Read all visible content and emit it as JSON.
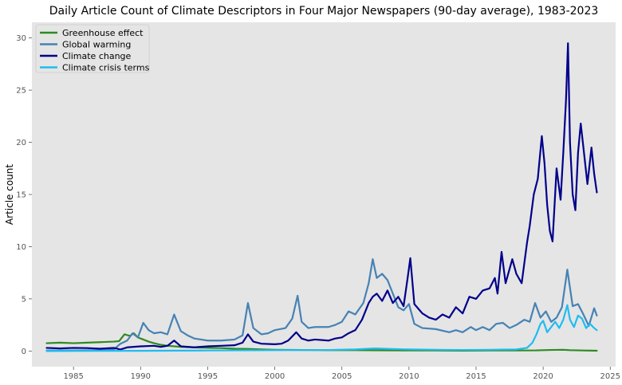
{
  "chart_data": {
    "type": "line",
    "title": "Daily Article Count of Climate Descriptors in Four Major Newspapers (90-day average), 1983-2023",
    "xlabel": "",
    "ylabel": "Article count",
    "xlim": [
      1981.9,
      2025.4
    ],
    "ylim": [
      -1.5,
      31.5
    ],
    "x_ticks": [
      1985,
      1990,
      1995,
      2000,
      2005,
      2010,
      2015,
      2020,
      2025
    ],
    "y_ticks": [
      0,
      5,
      10,
      15,
      20,
      25,
      30
    ],
    "grid": false,
    "background": "#e5e5e5",
    "legend_position": "top-left",
    "series": [
      {
        "name": "Greenhouse effect",
        "color": "#2e8b22",
        "points": [
          [
            1983.0,
            0.75
          ],
          [
            1984.0,
            0.8
          ],
          [
            1985.0,
            0.75
          ],
          [
            1986.0,
            0.8
          ],
          [
            1987.0,
            0.85
          ],
          [
            1988.0,
            0.9
          ],
          [
            1988.4,
            0.95
          ],
          [
            1988.8,
            1.6
          ],
          [
            1989.2,
            1.45
          ],
          [
            1989.5,
            1.7
          ],
          [
            1989.8,
            1.3
          ],
          [
            1990.2,
            1.1
          ],
          [
            1990.6,
            0.9
          ],
          [
            1991.0,
            0.75
          ],
          [
            1991.5,
            0.6
          ],
          [
            1992.0,
            0.5
          ],
          [
            1993.0,
            0.4
          ],
          [
            1994.0,
            0.35
          ],
          [
            1995.0,
            0.3
          ],
          [
            1996.0,
            0.28
          ],
          [
            1997.0,
            0.22
          ],
          [
            1998.0,
            0.2
          ],
          [
            1999.0,
            0.15
          ],
          [
            2000.0,
            0.12
          ],
          [
            2002.0,
            0.1
          ],
          [
            2004.0,
            0.08
          ],
          [
            2006.0,
            0.08
          ],
          [
            2008.0,
            0.06
          ],
          [
            2010.0,
            0.05
          ],
          [
            2012.0,
            0.05
          ],
          [
            2014.0,
            0.04
          ],
          [
            2016.0,
            0.05
          ],
          [
            2018.0,
            0.05
          ],
          [
            2019.5,
            0.06
          ],
          [
            2020.5,
            0.1
          ],
          [
            2021.5,
            0.12
          ],
          [
            2022.0,
            0.08
          ],
          [
            2023.0,
            0.05
          ],
          [
            2024.0,
            0.03
          ]
        ]
      },
      {
        "name": "Global warming",
        "color": "#4682b4",
        "points": [
          [
            1983.0,
            0.05
          ],
          [
            1985.0,
            0.05
          ],
          [
            1987.0,
            0.08
          ],
          [
            1988.0,
            0.15
          ],
          [
            1988.5,
            0.7
          ],
          [
            1989.0,
            1.0
          ],
          [
            1989.4,
            1.7
          ],
          [
            1989.8,
            1.3
          ],
          [
            1990.2,
            2.7
          ],
          [
            1990.6,
            2.0
          ],
          [
            1991.0,
            1.7
          ],
          [
            1991.5,
            1.8
          ],
          [
            1992.0,
            1.6
          ],
          [
            1992.5,
            3.5
          ],
          [
            1993.0,
            1.9
          ],
          [
            1993.5,
            1.5
          ],
          [
            1994.0,
            1.2
          ],
          [
            1995.0,
            1.0
          ],
          [
            1996.0,
            1.0
          ],
          [
            1997.0,
            1.1
          ],
          [
            1997.6,
            1.5
          ],
          [
            1998.0,
            4.6
          ],
          [
            1998.4,
            2.2
          ],
          [
            1999.0,
            1.6
          ],
          [
            1999.5,
            1.7
          ],
          [
            2000.0,
            2.0
          ],
          [
            2000.8,
            2.2
          ],
          [
            2001.3,
            3.1
          ],
          [
            2001.7,
            5.3
          ],
          [
            2002.0,
            2.8
          ],
          [
            2002.5,
            2.2
          ],
          [
            2003.0,
            2.3
          ],
          [
            2004.0,
            2.3
          ],
          [
            2004.5,
            2.5
          ],
          [
            2005.0,
            2.8
          ],
          [
            2005.5,
            3.8
          ],
          [
            2006.0,
            3.5
          ],
          [
            2006.6,
            4.6
          ],
          [
            2007.0,
            6.5
          ],
          [
            2007.3,
            8.8
          ],
          [
            2007.6,
            7.0
          ],
          [
            2008.0,
            7.4
          ],
          [
            2008.4,
            6.8
          ],
          [
            2008.8,
            5.5
          ],
          [
            2009.2,
            4.2
          ],
          [
            2009.6,
            3.9
          ],
          [
            2010.0,
            4.5
          ],
          [
            2010.4,
            2.6
          ],
          [
            2011.0,
            2.2
          ],
          [
            2012.0,
            2.1
          ],
          [
            2013.0,
            1.8
          ],
          [
            2013.5,
            2.0
          ],
          [
            2014.0,
            1.8
          ],
          [
            2014.6,
            2.3
          ],
          [
            2015.0,
            2.0
          ],
          [
            2015.5,
            2.3
          ],
          [
            2016.0,
            2.0
          ],
          [
            2016.5,
            2.6
          ],
          [
            2017.0,
            2.7
          ],
          [
            2017.5,
            2.2
          ],
          [
            2018.0,
            2.5
          ],
          [
            2018.6,
            3.0
          ],
          [
            2019.0,
            2.8
          ],
          [
            2019.4,
            4.6
          ],
          [
            2019.8,
            3.2
          ],
          [
            2020.2,
            3.8
          ],
          [
            2020.6,
            2.8
          ],
          [
            2021.0,
            3.2
          ],
          [
            2021.4,
            4.2
          ],
          [
            2021.8,
            7.8
          ],
          [
            2022.2,
            4.3
          ],
          [
            2022.6,
            4.5
          ],
          [
            2023.0,
            3.5
          ],
          [
            2023.4,
            2.4
          ],
          [
            2023.8,
            4.1
          ],
          [
            2024.0,
            3.4
          ]
        ]
      },
      {
        "name": "Climate change",
        "color": "#00008b",
        "points": [
          [
            1983.0,
            0.3
          ],
          [
            1984.0,
            0.25
          ],
          [
            1985.0,
            0.3
          ],
          [
            1986.0,
            0.28
          ],
          [
            1987.0,
            0.22
          ],
          [
            1988.0,
            0.3
          ],
          [
            1988.5,
            0.15
          ],
          [
            1989.0,
            0.35
          ],
          [
            1989.5,
            0.4
          ],
          [
            1990.0,
            0.45
          ],
          [
            1991.0,
            0.5
          ],
          [
            1991.5,
            0.4
          ],
          [
            1992.0,
            0.5
          ],
          [
            1992.5,
            1.0
          ],
          [
            1993.0,
            0.45
          ],
          [
            1994.0,
            0.35
          ],
          [
            1995.0,
            0.45
          ],
          [
            1996.0,
            0.5
          ],
          [
            1997.0,
            0.55
          ],
          [
            1997.6,
            0.8
          ],
          [
            1998.0,
            1.6
          ],
          [
            1998.4,
            0.9
          ],
          [
            1999.0,
            0.7
          ],
          [
            2000.0,
            0.65
          ],
          [
            2000.5,
            0.7
          ],
          [
            2001.0,
            1.0
          ],
          [
            2001.6,
            1.8
          ],
          [
            2002.0,
            1.2
          ],
          [
            2002.5,
            1.0
          ],
          [
            2003.0,
            1.1
          ],
          [
            2004.0,
            1.0
          ],
          [
            2004.5,
            1.2
          ],
          [
            2005.0,
            1.3
          ],
          [
            2005.5,
            1.7
          ],
          [
            2006.0,
            2.0
          ],
          [
            2006.5,
            3.0
          ],
          [
            2007.0,
            4.6
          ],
          [
            2007.3,
            5.2
          ],
          [
            2007.6,
            5.5
          ],
          [
            2008.0,
            4.8
          ],
          [
            2008.4,
            5.8
          ],
          [
            2008.8,
            4.6
          ],
          [
            2009.2,
            5.2
          ],
          [
            2009.6,
            4.3
          ],
          [
            2009.9,
            7.0
          ],
          [
            2010.1,
            8.9
          ],
          [
            2010.4,
            4.5
          ],
          [
            2011.0,
            3.6
          ],
          [
            2011.5,
            3.2
          ],
          [
            2012.0,
            3.0
          ],
          [
            2012.5,
            3.5
          ],
          [
            2013.0,
            3.2
          ],
          [
            2013.5,
            4.2
          ],
          [
            2014.0,
            3.6
          ],
          [
            2014.5,
            5.2
          ],
          [
            2015.0,
            5.0
          ],
          [
            2015.5,
            5.8
          ],
          [
            2016.0,
            6.0
          ],
          [
            2016.4,
            7.0
          ],
          [
            2016.6,
            5.5
          ],
          [
            2016.9,
            9.5
          ],
          [
            2017.2,
            6.5
          ],
          [
            2017.7,
            8.8
          ],
          [
            2018.0,
            7.4
          ],
          [
            2018.4,
            6.5
          ],
          [
            2018.8,
            10.4
          ],
          [
            2019.0,
            12.0
          ],
          [
            2019.3,
            15.0
          ],
          [
            2019.6,
            16.5
          ],
          [
            2019.9,
            20.6
          ],
          [
            2020.1,
            18.0
          ],
          [
            2020.3,
            14.0
          ],
          [
            2020.5,
            11.5
          ],
          [
            2020.7,
            10.5
          ],
          [
            2021.0,
            17.5
          ],
          [
            2021.3,
            14.5
          ],
          [
            2021.5,
            19.0
          ],
          [
            2021.7,
            24.0
          ],
          [
            2021.85,
            29.5
          ],
          [
            2022.0,
            20.0
          ],
          [
            2022.2,
            15.0
          ],
          [
            2022.4,
            13.5
          ],
          [
            2022.6,
            19.0
          ],
          [
            2022.8,
            21.8
          ],
          [
            2023.0,
            19.5
          ],
          [
            2023.3,
            16.0
          ],
          [
            2023.6,
            19.5
          ],
          [
            2023.8,
            17.0
          ],
          [
            2024.0,
            15.2
          ]
        ]
      },
      {
        "name": "Climate crisis terms",
        "color": "#1ebcf0",
        "points": [
          [
            1983.0,
            0.0
          ],
          [
            1990.0,
            0.02
          ],
          [
            1995.0,
            0.05
          ],
          [
            2000.0,
            0.08
          ],
          [
            2004.0,
            0.1
          ],
          [
            2006.0,
            0.15
          ],
          [
            2007.5,
            0.25
          ],
          [
            2008.5,
            0.2
          ],
          [
            2010.0,
            0.15
          ],
          [
            2012.0,
            0.12
          ],
          [
            2014.0,
            0.1
          ],
          [
            2016.0,
            0.12
          ],
          [
            2018.0,
            0.15
          ],
          [
            2018.8,
            0.3
          ],
          [
            2019.2,
            0.8
          ],
          [
            2019.5,
            1.6
          ],
          [
            2019.8,
            2.6
          ],
          [
            2020.0,
            2.9
          ],
          [
            2020.3,
            1.8
          ],
          [
            2020.6,
            2.3
          ],
          [
            2020.9,
            2.8
          ],
          [
            2021.2,
            2.2
          ],
          [
            2021.5,
            3.0
          ],
          [
            2021.8,
            4.4
          ],
          [
            2022.0,
            3.0
          ],
          [
            2022.3,
            2.3
          ],
          [
            2022.6,
            3.4
          ],
          [
            2022.9,
            3.1
          ],
          [
            2023.2,
            2.2
          ],
          [
            2023.5,
            2.6
          ],
          [
            2023.8,
            2.2
          ],
          [
            2024.0,
            2.0
          ]
        ]
      }
    ]
  }
}
